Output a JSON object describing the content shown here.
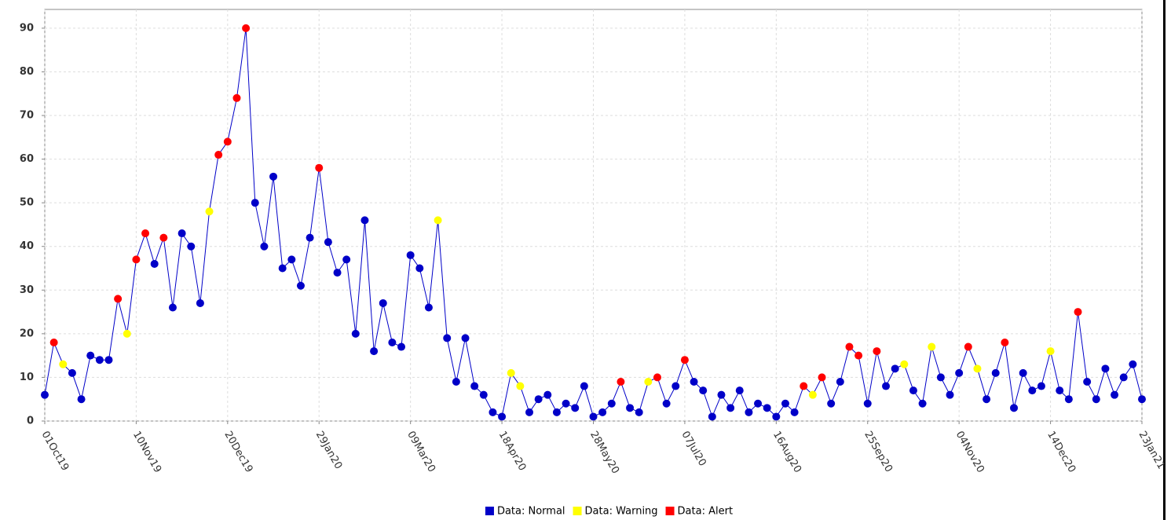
{
  "chart_data": {
    "type": "line",
    "x": [
      "01Oct19",
      "05Oct19",
      "09Oct19",
      "13Oct19",
      "17Oct19",
      "21Oct19",
      "25Oct19",
      "29Oct19",
      "02Nov19",
      "06Nov19",
      "10Nov19",
      "14Nov19",
      "18Nov19",
      "22Nov19",
      "26Nov19",
      "30Nov19",
      "04Dec19",
      "08Dec19",
      "12Dec19",
      "16Dec19",
      "20Dec19",
      "24Dec19",
      "28Dec19",
      "01Jan20",
      "05Jan20",
      "09Jan20",
      "13Jan20",
      "17Jan20",
      "21Jan20",
      "25Jan20",
      "29Jan20",
      "02Feb20",
      "06Feb20",
      "10Feb20",
      "14Feb20",
      "18Feb20",
      "22Feb20",
      "26Feb20",
      "01Mar20",
      "05Mar20",
      "09Mar20",
      "13Mar20",
      "17Mar20",
      "21Mar20",
      "25Mar20",
      "29Mar20",
      "02Apr20",
      "06Apr20",
      "10Apr20",
      "14Apr20",
      "18Apr20",
      "22Apr20",
      "26Apr20",
      "30Apr20",
      "04May20",
      "08May20",
      "12May20",
      "16May20",
      "20May20",
      "24May20",
      "28May20",
      "01Jun20",
      "05Jun20",
      "09Jun20",
      "13Jun20",
      "17Jun20",
      "21Jun20",
      "25Jun20",
      "29Jun20",
      "03Jul20",
      "07Jul20",
      "11Jul20",
      "15Jul20",
      "19Jul20",
      "23Jul20",
      "27Jul20",
      "31Jul20",
      "04Aug20",
      "08Aug20",
      "12Aug20",
      "16Aug20",
      "20Aug20",
      "24Aug20",
      "28Aug20",
      "01Sep20",
      "05Sep20",
      "09Sep20",
      "13Sep20",
      "17Sep20",
      "21Sep20",
      "25Sep20",
      "29Sep20",
      "03Oct20",
      "07Oct20",
      "11Oct20",
      "15Oct20",
      "19Oct20",
      "23Oct20",
      "27Oct20",
      "31Oct20",
      "04Nov20",
      "08Nov20",
      "12Nov20",
      "16Nov20",
      "20Nov20",
      "24Nov20",
      "28Nov20",
      "02Dec20",
      "06Dec20",
      "10Dec20",
      "14Dec20",
      "18Dec20",
      "22Dec20",
      "26Dec20",
      "30Dec20",
      "03Jan21",
      "07Jan21",
      "11Jan21",
      "15Jan21",
      "19Jan21",
      "23Jan21"
    ],
    "series": [
      {
        "name": "Data: Normal",
        "color": "#0000c8",
        "values": [
          6,
          null,
          null,
          11,
          5,
          15,
          14,
          14,
          null,
          null,
          null,
          null,
          36,
          null,
          26,
          43,
          40,
          27,
          null,
          null,
          null,
          null,
          null,
          50,
          40,
          56,
          35,
          37,
          31,
          42,
          null,
          41,
          34,
          37,
          20,
          46,
          16,
          27,
          18,
          17,
          38,
          35,
          26,
          null,
          19,
          9,
          19,
          8,
          6,
          2,
          1,
          null,
          null,
          2,
          5,
          6,
          2,
          4,
          3,
          8,
          1,
          2,
          4,
          null,
          3,
          2,
          null,
          null,
          4,
          8,
          null,
          9,
          7,
          1,
          6,
          3,
          7,
          2,
          4,
          3,
          1,
          4,
          2,
          null,
          null,
          null,
          4,
          9,
          null,
          null,
          4,
          null,
          8,
          12,
          null,
          7,
          4,
          null,
          10,
          6,
          11,
          null,
          null,
          5,
          11,
          null,
          3,
          11,
          7,
          8,
          null,
          7,
          5,
          null,
          9,
          5,
          12,
          6,
          10,
          13,
          5
        ]
      },
      {
        "name": "Data: Warning",
        "color": "#ffff00",
        "values": [
          null,
          null,
          13,
          null,
          null,
          null,
          null,
          null,
          null,
          20,
          null,
          null,
          null,
          null,
          null,
          null,
          null,
          null,
          48,
          null,
          null,
          null,
          null,
          null,
          null,
          null,
          null,
          null,
          null,
          null,
          null,
          null,
          null,
          null,
          null,
          null,
          null,
          null,
          null,
          null,
          null,
          null,
          null,
          46,
          null,
          null,
          null,
          null,
          null,
          null,
          null,
          11,
          8,
          null,
          null,
          null,
          null,
          null,
          null,
          null,
          null,
          null,
          null,
          null,
          null,
          null,
          9,
          null,
          null,
          null,
          null,
          null,
          null,
          null,
          null,
          null,
          null,
          null,
          null,
          null,
          null,
          null,
          null,
          null,
          6,
          null,
          null,
          null,
          null,
          null,
          null,
          null,
          null,
          null,
          13,
          null,
          null,
          17,
          null,
          null,
          null,
          null,
          12,
          null,
          null,
          null,
          null,
          null,
          null,
          null,
          16,
          null,
          null,
          null,
          null,
          null,
          null,
          null,
          null,
          null,
          null
        ]
      },
      {
        "name": "Data: Alert",
        "color": "#ff0000",
        "values": [
          null,
          18,
          null,
          null,
          null,
          null,
          null,
          null,
          28,
          null,
          37,
          43,
          null,
          42,
          null,
          null,
          null,
          null,
          null,
          61,
          64,
          74,
          90,
          null,
          null,
          null,
          null,
          null,
          null,
          null,
          58,
          null,
          null,
          null,
          null,
          null,
          null,
          null,
          null,
          null,
          null,
          null,
          null,
          null,
          null,
          null,
          null,
          null,
          null,
          null,
          null,
          null,
          null,
          null,
          null,
          null,
          null,
          null,
          null,
          null,
          null,
          null,
          null,
          9,
          null,
          null,
          null,
          10,
          null,
          null,
          14,
          null,
          null,
          null,
          null,
          null,
          null,
          null,
          null,
          null,
          null,
          null,
          null,
          8,
          null,
          10,
          null,
          null,
          17,
          15,
          null,
          16,
          null,
          null,
          null,
          null,
          null,
          null,
          null,
          null,
          null,
          17,
          null,
          null,
          null,
          18,
          null,
          null,
          null,
          null,
          null,
          null,
          null,
          25,
          null,
          null,
          null,
          null,
          null,
          null,
          null
        ]
      }
    ],
    "line_color": "#0000c8",
    "xlim": [
      "01Oct19",
      "23Jan21"
    ],
    "xticks": [
      "01Oct19",
      "10Nov19",
      "20Dec19",
      "29Jan20",
      "09Mar20",
      "18Apr20",
      "28May20",
      "07Jul20",
      "16Aug20",
      "25Sep20",
      "04Nov20",
      "14Dec20",
      "23Jan21"
    ],
    "ylim": [
      0,
      94.3
    ],
    "yticks": [
      0,
      10,
      20,
      30,
      40,
      50,
      60,
      70,
      80,
      90
    ],
    "grid": true,
    "legend": "bottom"
  }
}
